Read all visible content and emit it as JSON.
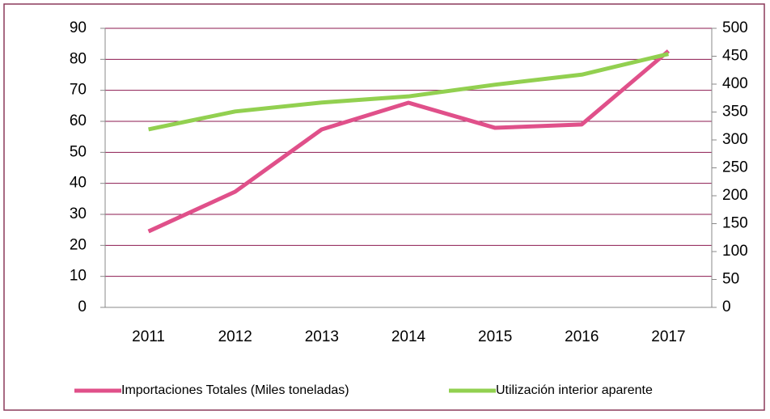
{
  "chart_data": {
    "type": "line",
    "categories": [
      "2011",
      "2012",
      "2013",
      "2014",
      "2015",
      "2016",
      "2017"
    ],
    "series": [
      {
        "name": "Importaciones Totales (Miles toneladas)",
        "color": "#e0508a",
        "values": [
          24.5,
          37.3,
          57.4,
          66,
          57.9,
          59,
          82.7
        ]
      },
      {
        "name": "Utilización interior aparente",
        "color": "#92d050",
        "axis": "y2",
        "values": [
          319,
          351,
          367,
          378,
          399,
          417,
          454
        ]
      }
    ],
    "ylim": [
      0,
      90
    ],
    "yticks": [
      0,
      10,
      20,
      30,
      40,
      50,
      60,
      70,
      80,
      90
    ],
    "y2lim": [
      0,
      500
    ],
    "y2ticks": [
      0,
      50,
      100,
      150,
      200,
      250,
      300,
      350,
      400,
      450,
      500
    ],
    "grid": true,
    "grid_color": "#8b1a4f",
    "legend": "bottom"
  }
}
